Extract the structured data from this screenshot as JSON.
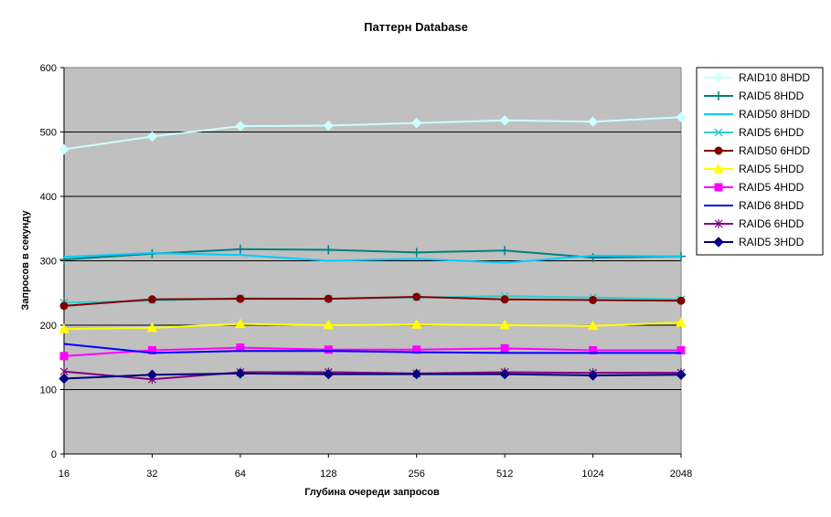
{
  "chart_data": {
    "type": "line",
    "title": "Паттерн Database",
    "xlabel": "Глубина очереди запросов",
    "ylabel": "Запросов в секунду",
    "ylim": [
      0,
      600
    ],
    "yticks": [
      "0",
      "100",
      "200",
      "300",
      "400",
      "500",
      "600"
    ],
    "categories": [
      "16",
      "32",
      "64",
      "128",
      "256",
      "512",
      "1024",
      "2048"
    ],
    "grid": true,
    "plot_background": "#c0c0c0",
    "legend_position": "right",
    "series": [
      {
        "name": "RAID10 8HDD",
        "color": "#ccffff",
        "marker": "diamond",
        "values": [
          473,
          493,
          509,
          510,
          514,
          518,
          516,
          523
        ]
      },
      {
        "name": "RAID5 8HDD",
        "color": "#008080",
        "marker": "plus",
        "values": [
          302,
          311,
          318,
          317,
          313,
          316,
          305,
          307
        ]
      },
      {
        "name": "RAID50 8HDD",
        "color": "#00ccff",
        "marker": "none",
        "values": [
          306,
          312,
          309,
          300,
          303,
          297,
          308,
          307
        ]
      },
      {
        "name": "RAID5 6HDD",
        "color": "#33cccc",
        "marker": "x",
        "values": [
          235,
          238,
          242,
          241,
          243,
          245,
          243,
          240
        ]
      },
      {
        "name": "RAID50 6HDD",
        "color": "#800000",
        "marker": "circle",
        "values": [
          230,
          240,
          241,
          241,
          244,
          240,
          239,
          238
        ]
      },
      {
        "name": "RAID5 5HDD",
        "color": "#ffff00",
        "marker": "triangle",
        "values": [
          194,
          196,
          202,
          200,
          201,
          200,
          199,
          204
        ]
      },
      {
        "name": "RAID5 4HDD",
        "color": "#ff00ff",
        "marker": "square",
        "values": [
          152,
          161,
          165,
          162,
          162,
          164,
          161,
          161
        ]
      },
      {
        "name": "RAID6 8HDD",
        "color": "#0000ff",
        "marker": "none",
        "values": [
          171,
          157,
          160,
          160,
          158,
          157,
          157,
          157
        ]
      },
      {
        "name": "RAID6 6HDD",
        "color": "#800080",
        "marker": "star",
        "values": [
          128,
          116,
          127,
          127,
          125,
          127,
          126,
          126
        ]
      },
      {
        "name": "RAID5 3HDD",
        "color": "#000080",
        "marker": "diamond",
        "values": [
          117,
          123,
          125,
          124,
          124,
          124,
          122,
          123
        ]
      }
    ]
  }
}
